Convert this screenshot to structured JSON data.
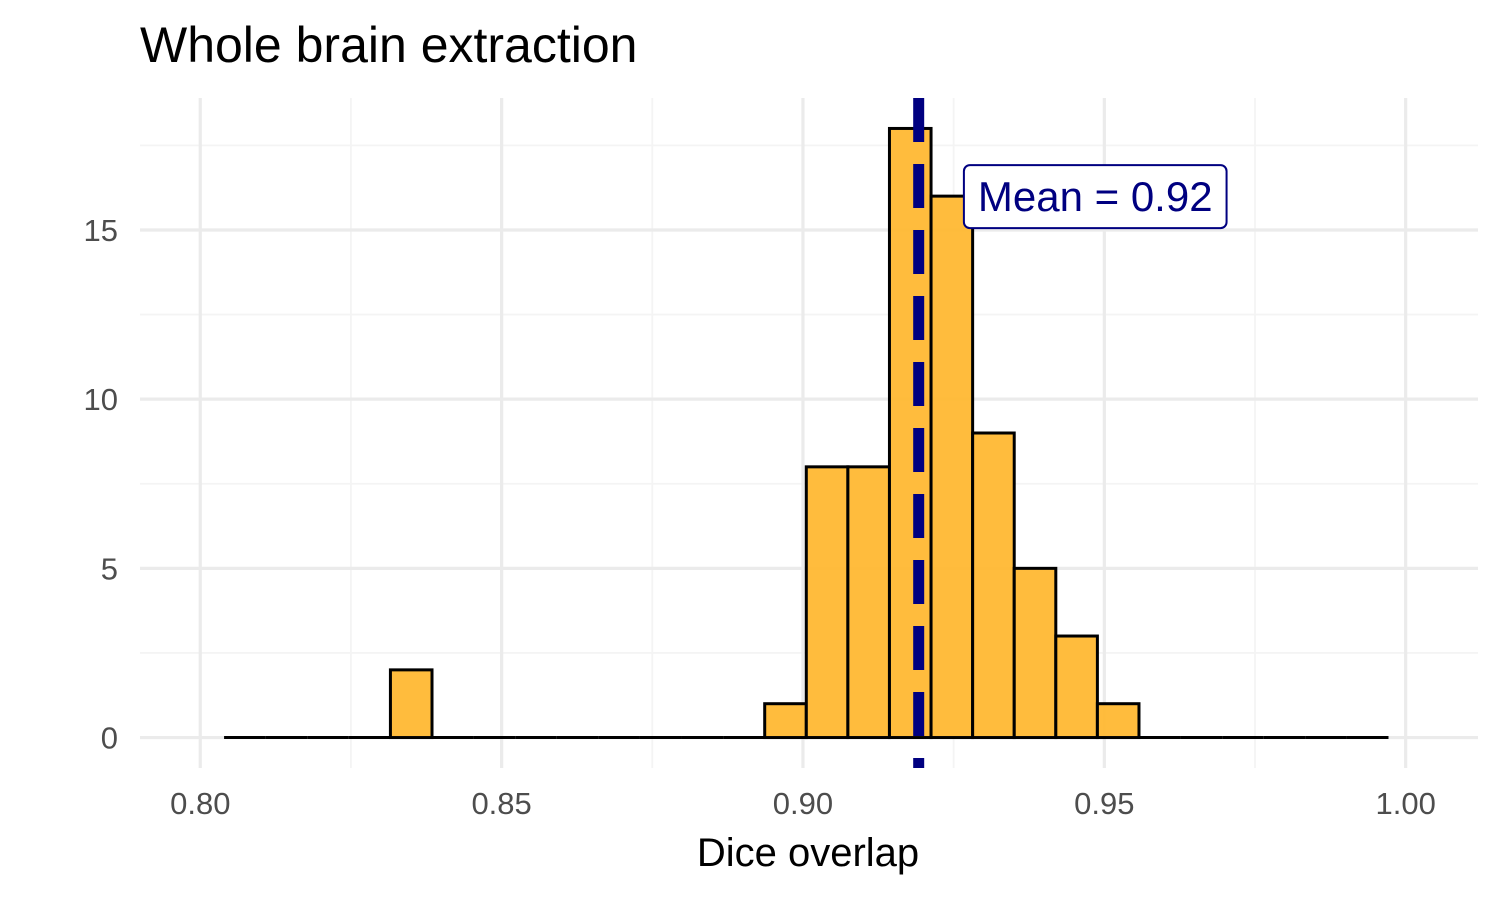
{
  "chart_data": {
    "type": "bar",
    "subtype": "histogram",
    "title": "Whole brain extraction",
    "xlabel": "Dice overlap",
    "ylabel": "",
    "xlim": [
      0.79,
      1.012
    ],
    "ylim": [
      -0.9,
      18.9
    ],
    "x_ticks": [
      0.8,
      0.85,
      0.9,
      0.95,
      1.0
    ],
    "x_tick_labels": [
      "0.80",
      "0.85",
      "0.90",
      "0.95",
      "1.00"
    ],
    "x_minor_ticks": [
      0.825,
      0.875,
      0.925,
      0.975
    ],
    "y_ticks": [
      0,
      5,
      10,
      15
    ],
    "y_tick_labels": [
      "0",
      "5",
      "10",
      "15"
    ],
    "y_minor_ticks": [
      2.5,
      7.5,
      12.5,
      17.5
    ],
    "grid": true,
    "legend": "none",
    "bin_width": 0.0069,
    "bins": [
      {
        "x": 0.8074,
        "count": 0
      },
      {
        "x": 0.8143,
        "count": 0
      },
      {
        "x": 0.8212,
        "count": 0
      },
      {
        "x": 0.8281,
        "count": 0
      },
      {
        "x": 0.835,
        "count": 2
      },
      {
        "x": 0.8419,
        "count": 0
      },
      {
        "x": 0.8488,
        "count": 0
      },
      {
        "x": 0.8557,
        "count": 0
      },
      {
        "x": 0.8626,
        "count": 0
      },
      {
        "x": 0.8695,
        "count": 0
      },
      {
        "x": 0.8764,
        "count": 0
      },
      {
        "x": 0.8833,
        "count": 0
      },
      {
        "x": 0.8902,
        "count": 0
      },
      {
        "x": 0.8971,
        "count": 1
      },
      {
        "x": 0.904,
        "count": 8
      },
      {
        "x": 0.9109,
        "count": 8
      },
      {
        "x": 0.9178,
        "count": 18
      },
      {
        "x": 0.9247,
        "count": 16
      },
      {
        "x": 0.9316,
        "count": 9
      },
      {
        "x": 0.9385,
        "count": 5
      },
      {
        "x": 0.9454,
        "count": 3
      },
      {
        "x": 0.9523,
        "count": 1
      },
      {
        "x": 0.9592,
        "count": 0
      },
      {
        "x": 0.9661,
        "count": 0
      },
      {
        "x": 0.973,
        "count": 0
      },
      {
        "x": 0.9799,
        "count": 0
      },
      {
        "x": 0.9868,
        "count": 0
      },
      {
        "x": 0.9937,
        "count": 0
      }
    ],
    "mean_line": {
      "x": 0.9192,
      "style": "dashed"
    },
    "annotation": {
      "text": "Mean = 0.92",
      "x": 0.9267,
      "y": 16
    },
    "colors": {
      "bar_fill": "#ffb833",
      "bar_stroke": "#000000",
      "mean_line": "#000080",
      "grid_major": "#ebebeb",
      "grid_minor": "#f4f4f4"
    }
  }
}
